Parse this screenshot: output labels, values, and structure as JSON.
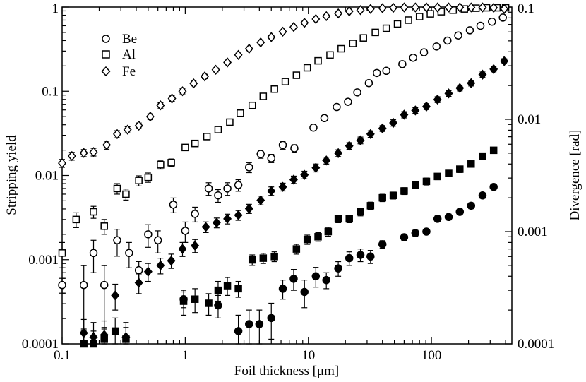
{
  "chart_data": {
    "type": "scatter",
    "title": "",
    "xlabel": "Foil thickness [μm]",
    "ylabel": "Stripping yield",
    "y2label": "Divergence [rad]",
    "xscale": "log",
    "yscale": "log",
    "xlim": [
      0.1,
      450
    ],
    "ylim": [
      0.0001,
      1
    ],
    "y2lim": [
      0.0001,
      0.1
    ],
    "grid": false,
    "legend_position": "top-left",
    "x_ticks": [
      {
        "value": 0.1,
        "label": "0.1"
      },
      {
        "value": 1,
        "label": "1"
      },
      {
        "value": 10,
        "label": "10"
      },
      {
        "value": 100,
        "label": "100"
      }
    ],
    "y_ticks": [
      {
        "value": 0.0001,
        "label": "0.0001"
      },
      {
        "value": 0.001,
        "label": "0.001"
      },
      {
        "value": 0.01,
        "label": "0.01"
      },
      {
        "value": 0.1,
        "label": "0.1"
      },
      {
        "value": 1,
        "label": "1"
      }
    ],
    "y2_ticks": [
      {
        "value": 0.0001,
        "label": "0.0001"
      },
      {
        "value": 0.001,
        "label": "0.001"
      },
      {
        "value": 0.01,
        "label": "0.01"
      },
      {
        "value": 0.1,
        "label": "0.1"
      }
    ],
    "series": [
      {
        "name": "Be",
        "axis": "left",
        "marker": "circle",
        "filled": false,
        "in_legend": true,
        "x": [
          0.1,
          0.15,
          0.18,
          0.22,
          0.28,
          0.35,
          0.42,
          0.5,
          0.6,
          0.8,
          1.0,
          1.2,
          1.55,
          1.85,
          2.2,
          2.7,
          3.3,
          4.1,
          5.0,
          6.2,
          7.7,
          11,
          13.5,
          17,
          21,
          25,
          31,
          36,
          43,
          58,
          71,
          87,
          110,
          135,
          165,
          205,
          250,
          310,
          380
        ],
        "y": [
          0.0005,
          0.0005,
          0.0012,
          0.0005,
          0.0017,
          0.0012,
          0.00075,
          0.002,
          0.0017,
          0.0045,
          0.0022,
          0.0035,
          0.007,
          0.0058,
          0.007,
          0.0077,
          0.0125,
          0.018,
          0.016,
          0.023,
          0.021,
          0.037,
          0.048,
          0.065,
          0.075,
          0.097,
          0.125,
          0.165,
          0.175,
          0.21,
          0.25,
          0.29,
          0.34,
          0.4,
          0.46,
          0.53,
          0.6,
          0.67,
          0.75
        ],
        "err": [
          0.0001,
          0.00035,
          0.0005,
          0.00035,
          0.0006,
          0.0004,
          0.0002,
          0.0006,
          0.0005,
          0.0009,
          0.0006,
          0.0007,
          0.0012,
          0.001,
          0.0012,
          0.0012,
          0.0017,
          0.002,
          0.0018,
          0.0025,
          0.0022,
          0.003,
          0.003,
          0.004,
          0.004,
          0.004,
          0.005,
          0.005,
          0.006,
          0.007,
          0.008,
          0.009,
          0.01,
          0.012,
          0.013,
          0.015,
          0.017,
          0.02,
          0.022
        ]
      },
      {
        "name": "Al",
        "axis": "left",
        "marker": "square",
        "filled": false,
        "in_legend": true,
        "x": [
          0.1,
          0.13,
          0.18,
          0.22,
          0.28,
          0.33,
          0.42,
          0.5,
          0.63,
          0.77,
          1.0,
          1.2,
          1.5,
          1.85,
          2.3,
          2.8,
          3.5,
          4.3,
          5.3,
          6.5,
          8.0,
          9.8,
          12,
          15,
          18.5,
          23,
          28,
          35,
          43,
          53,
          65,
          80,
          98,
          120,
          150,
          185,
          230,
          280,
          340,
          400
        ],
        "y": [
          0.0012,
          0.003,
          0.0037,
          0.0025,
          0.007,
          0.006,
          0.0087,
          0.0095,
          0.0134,
          0.0142,
          0.0215,
          0.024,
          0.029,
          0.035,
          0.043,
          0.055,
          0.068,
          0.087,
          0.106,
          0.13,
          0.155,
          0.19,
          0.23,
          0.27,
          0.32,
          0.37,
          0.43,
          0.5,
          0.56,
          0.63,
          0.7,
          0.77,
          0.83,
          0.88,
          0.92,
          0.95,
          0.97,
          0.98,
          0.98,
          0.98
        ],
        "err": [
          0.0004,
          0.0006,
          0.0006,
          0.0005,
          0.001,
          0.0009,
          0.0012,
          0.0012,
          0.0015,
          0.0015,
          0.0018,
          0.002,
          0.0025,
          0.003,
          0.003,
          0.004,
          0.004,
          0.005,
          0.006,
          0.007,
          0.008,
          0.009,
          0.01,
          0.012,
          0.013,
          0.015,
          0.017,
          0.02,
          0.022,
          0.025,
          0.028,
          0.03,
          0.03,
          0.035,
          0.035,
          0.04,
          0.04,
          0.04,
          0.04,
          0.04
        ]
      },
      {
        "name": "Fe",
        "axis": "left",
        "marker": "diamond",
        "filled": false,
        "in_legend": true,
        "x": [
          0.1,
          0.12,
          0.15,
          0.18,
          0.23,
          0.28,
          0.34,
          0.42,
          0.52,
          0.63,
          0.78,
          0.95,
          1.17,
          1.44,
          1.77,
          2.2,
          2.7,
          3.3,
          4.1,
          5.0,
          6.2,
          7.6,
          9.3,
          11.5,
          14,
          17.5,
          21.5,
          26.5,
          32,
          40,
          49,
          60,
          74,
          91,
          112,
          138,
          170,
          210,
          260,
          320,
          390
        ],
        "y": [
          0.014,
          0.017,
          0.0185,
          0.019,
          0.023,
          0.031,
          0.035,
          0.039,
          0.05,
          0.068,
          0.082,
          0.1,
          0.124,
          0.15,
          0.18,
          0.22,
          0.27,
          0.32,
          0.38,
          0.44,
          0.51,
          0.58,
          0.65,
          0.72,
          0.78,
          0.84,
          0.89,
          0.92,
          0.95,
          0.97,
          0.98,
          0.99,
          0.99,
          0.99,
          0.99,
          0.99,
          0.99,
          0.99,
          0.99,
          0.98,
          0.95
        ],
        "err": [
          0.0015,
          0.0018,
          0.0018,
          0.002,
          0.0025,
          0.003,
          0.003,
          0.003,
          0.004,
          0.005,
          0.006,
          0.007,
          0.008,
          0.009,
          0.01,
          0.012,
          0.013,
          0.015,
          0.017,
          0.02,
          0.022,
          0.024,
          0.026,
          0.028,
          0.03,
          0.03,
          0.03,
          0.03,
          0.03,
          0.03,
          0.03,
          0.03,
          0.03,
          0.03,
          0.03,
          0.03,
          0.03,
          0.03,
          0.03,
          0.03,
          0.03
        ]
      },
      {
        "name": "Divergence (Fe)",
        "axis": "right",
        "marker": "diamond",
        "filled": true,
        "in_legend": false,
        "x": [
          0.15,
          0.18,
          0.22,
          0.27,
          0.33,
          0.42,
          0.5,
          0.63,
          0.77,
          0.95,
          1.2,
          1.47,
          1.8,
          2.2,
          2.7,
          3.3,
          4.1,
          5.0,
          6.2,
          7.6,
          9.3,
          11.5,
          14,
          17.5,
          21.5,
          26.5,
          32,
          40,
          49,
          60,
          74,
          91,
          112,
          138,
          170,
          210,
          260,
          320,
          390
        ],
        "y": [
          0.000125,
          0.000115,
          0.00012,
          0.00027,
          0.000115,
          0.00035,
          0.00044,
          0.0005,
          0.00055,
          0.0007,
          0.00075,
          0.0011,
          0.0012,
          0.0013,
          0.0014,
          0.0016,
          0.0019,
          0.0023,
          0.0025,
          0.0029,
          0.0032,
          0.0037,
          0.0043,
          0.005,
          0.0058,
          0.0065,
          0.0074,
          0.0083,
          0.0093,
          0.011,
          0.012,
          0.013,
          0.015,
          0.017,
          0.019,
          0.021,
          0.025,
          0.028,
          0.033
        ],
        "err": [
          4e-05,
          4e-05,
          4e-05,
          7e-05,
          4e-05,
          7e-05,
          8e-05,
          8e-05,
          8e-05,
          0.0001,
          0.0001,
          0.00012,
          0.00012,
          0.00013,
          0.00014,
          0.00015,
          0.00017,
          0.0002,
          0.0002,
          0.00022,
          0.00025,
          0.0003,
          0.0003,
          0.00035,
          0.0004,
          0.00045,
          0.0005,
          0.0005,
          0.0006,
          0.0007,
          0.0007,
          0.0008,
          0.0009,
          0.001,
          0.0011,
          0.0012,
          0.0014,
          0.0015,
          0.0017
        ]
      },
      {
        "name": "Divergence (Al)",
        "axis": "right",
        "marker": "square",
        "filled": true,
        "in_legend": false,
        "x": [
          0.15,
          0.18,
          0.22,
          0.27,
          0.33,
          0.97,
          1.2,
          1.55,
          1.85,
          2.2,
          2.7,
          3.5,
          4.3,
          5.3,
          8.0,
          9.8,
          12,
          14.5,
          17.5,
          21.5,
          26.5,
          32,
          40,
          49,
          60,
          74,
          91,
          112,
          138,
          170,
          210,
          260,
          320
        ],
        "y": [
          0.0001,
          0.0001,
          0.00011,
          0.00013,
          0.00011,
          0.00024,
          0.00025,
          0.00023,
          0.0003,
          0.00033,
          0.00031,
          0.00056,
          0.00058,
          0.0006,
          0.0007,
          0.00085,
          0.0009,
          0.001,
          0.0013,
          0.0013,
          0.0015,
          0.0017,
          0.002,
          0.0021,
          0.0023,
          0.0026,
          0.0028,
          0.0031,
          0.0033,
          0.0036,
          0.004,
          0.0047,
          0.0053
        ],
        "err": [
          3e-05,
          3e-05,
          3e-05,
          4e-05,
          3e-05,
          6e-05,
          6e-05,
          5e-05,
          6e-05,
          6e-05,
          5e-05,
          6e-05,
          6e-05,
          6e-05,
          7e-05,
          8e-05,
          8e-05,
          9e-05,
          0.0001,
          0.0001,
          0.00012,
          0.00013,
          0.00015,
          0.00015,
          0.00016,
          0.00018,
          0.0002,
          0.0002,
          0.00022,
          0.00024,
          0.00026,
          0.0003,
          0.00033
        ]
      },
      {
        "name": "Divergence (Be)",
        "axis": "right",
        "marker": "circle",
        "filled": true,
        "in_legend": false,
        "x": [
          0.97,
          1.85,
          2.7,
          3.3,
          4.0,
          5.0,
          6.2,
          7.6,
          9.3,
          11.5,
          14,
          17.5,
          21.5,
          26.5,
          32,
          40,
          60,
          74,
          91,
          112,
          138,
          170,
          210,
          260,
          320
        ],
        "y": [
          0.00025,
          0.00022,
          0.00013,
          0.00015,
          0.00015,
          0.00017,
          0.00031,
          0.00038,
          0.00029,
          0.0004,
          0.00037,
          0.00047,
          0.00058,
          0.00062,
          0.0006,
          0.00077,
          0.00089,
          0.00097,
          0.001,
          0.0013,
          0.00135,
          0.0015,
          0.0017,
          0.0021,
          0.0025
        ],
        "err": [
          4e-05,
          5e-05,
          5e-05,
          5e-05,
          5e-05,
          6e-05,
          6e-05,
          8e-05,
          8e-05,
          8e-05,
          6e-05,
          7e-05,
          8e-05,
          8e-05,
          8e-05,
          6e-05,
          6e-05,
          6e-05,
          6e-05,
          8e-05,
          8e-05,
          9e-05,
          0.0001,
          0.00012,
          0.00014
        ]
      }
    ]
  }
}
